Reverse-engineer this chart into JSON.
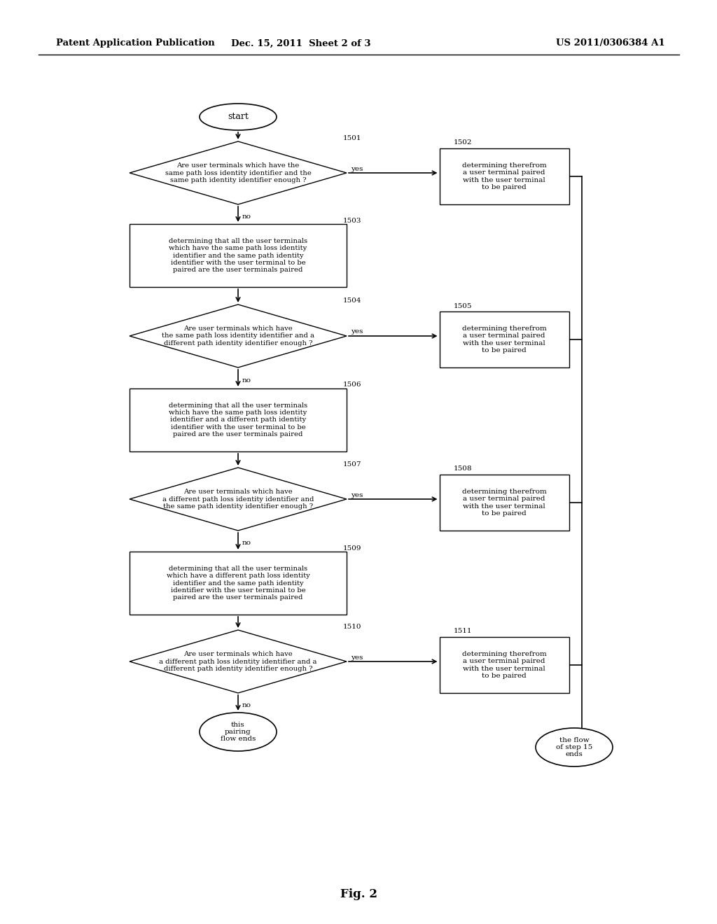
{
  "bg_color": "#ffffff",
  "header_left": "Patent Application Publication",
  "header_mid": "Dec. 15, 2011  Sheet 2 of 3",
  "header_right": "US 2011/0306384 A1",
  "fig_label": "Fig. 2",
  "start_label": "start",
  "d1_text": "Are user terminals which have the\nsame path loss identity identifier and the\nsame path identity identifier enough ?",
  "b1502_text": "determining therefrom\na user terminal paired\nwith the user terminal\nto be paired",
  "b1503_text": "determining that all the user terminals\nwhich have the same path loss identity\nidentifier and the same path identity\nidentifier with the user terminal to be\npaired are the user terminals paired",
  "d2_text": "Are user terminals which have\nthe same path loss identity identifier and a\ndifferent path identity identifier enough ?",
  "b1505_text": "determining therefrom\na user terminal paired\nwith the user terminal\nto be paired",
  "b1506_text": "determining that all the user terminals\nwhich have the same path loss identity\nidentifier and a different path identity\nidentifier with the user terminal to be\npaired are the user terminals paired",
  "d3_text": "Are user terminals which have\na different path loss identity identifier and\nthe same path identity identifier enough ?",
  "b1508_text": "determining therefrom\na user terminal paired\nwith the user terminal\nto be paired",
  "b1509_text": "determining that all the user terminals\nwhich have a different path loss identity\nidentifier and the same path identity\nidentifier with the user terminal to be\npaired are the user terminals paired",
  "d4_text": "Are user terminals which have\na different path loss identity identifier and a\ndifferent path identity identifier enough ?",
  "b1511_text": "determining therefrom\na user terminal paired\nwith the user terminal\nto be paired",
  "end1_text": "this\npairing\nflow ends",
  "end2_text": "the flow\nof step 15\nends"
}
